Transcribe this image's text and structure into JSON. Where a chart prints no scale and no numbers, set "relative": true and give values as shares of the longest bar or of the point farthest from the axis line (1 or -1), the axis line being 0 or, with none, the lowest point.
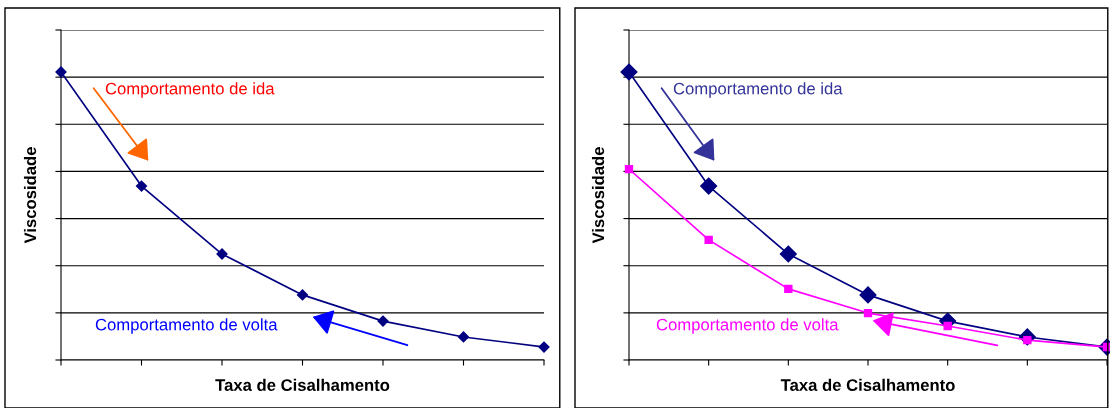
{
  "chart_data": [
    {
      "type": "line",
      "relative": true,
      "ylabel": "Viscosidade",
      "xlabel": "Taxa de Cisalhamento",
      "categories": [
        null,
        null,
        null,
        null,
        null,
        null,
        null
      ],
      "grid": "y",
      "legend": false,
      "line_style": "solid",
      "series": [
        {
          "color": "#000080",
          "marker": "diamond",
          "values": [
            1,
            0.604,
            0.368,
            0.226,
            0.135,
            0.08,
            0.045
          ]
        }
      ],
      "annotations": [
        "Comportamento de ida",
        "Comportamento de volta"
      ]
    },
    {
      "type": "line",
      "relative": true,
      "ylabel": "Viscosidade",
      "xlabel": "Taxa de Cisalhamento",
      "categories": [
        null,
        null,
        null,
        null,
        null,
        null,
        null
      ],
      "grid": "y",
      "legend": false,
      "line_style": "solid",
      "series": [
        {
          "color": "#000080",
          "marker": "diamond",
          "values": [
            1,
            0.604,
            0.368,
            0.226,
            0.135,
            0.08,
            0.045
          ]
        },
        {
          "color": "#ff00ff",
          "marker": "square",
          "values": [
            0.663,
            0.417,
            0.247,
            0.163,
            0.118,
            0.069,
            0.045
          ]
        }
      ],
      "annotations": [
        "Comportamento de ida",
        "Comportamento de volta"
      ]
    }
  ]
}
